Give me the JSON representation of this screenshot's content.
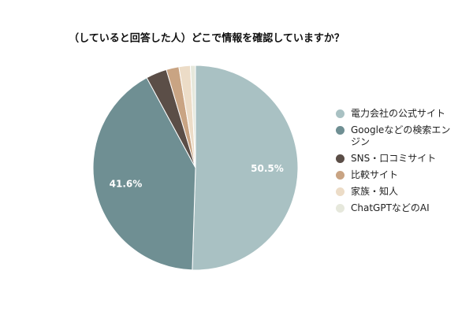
{
  "chart_data": {
    "type": "pie",
    "title": "（していると回答した人）どこで情報を確認していますか？",
    "categories": [
      "電力会社の公式サイト",
      "Googleなどの検索エンジン",
      "SNS・口コミサイト",
      "比較サイト",
      "家族・知人",
      "ChatGPTなどのAI"
    ],
    "values": [
      50.5,
      41.6,
      3.3,
      2.0,
      1.8,
      0.8
    ],
    "value_labels": [
      "50.5%",
      "41.6%",
      null,
      null,
      null,
      null
    ],
    "colors": [
      "#a9c1c3",
      "#6f8f93",
      "#5b4e47",
      "#c9a483",
      "#ecdcc7",
      "#e6e8dc"
    ],
    "legend": "right"
  }
}
